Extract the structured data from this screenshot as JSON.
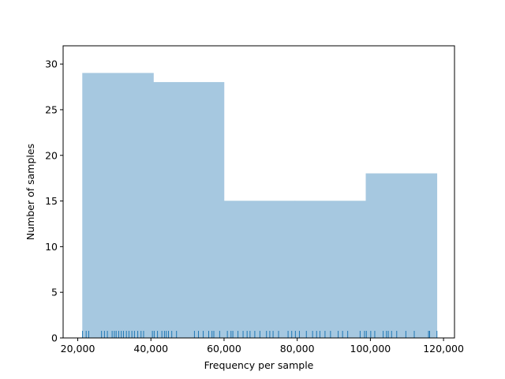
{
  "chart_data": {
    "type": "bar",
    "title": "",
    "xlabel": "Frequency per sample",
    "ylabel": "Number of samples",
    "xlim": [
      16000,
      123000
    ],
    "ylim": [
      0,
      32
    ],
    "xticks": [
      20000,
      40000,
      60000,
      80000,
      100000,
      120000
    ],
    "xtick_labels": [
      "20,000",
      "40,000",
      "60,000",
      "80,000",
      "100,000",
      "120,000"
    ],
    "yticks": [
      0,
      5,
      10,
      15,
      20,
      25,
      30
    ],
    "ytick_labels": [
      "0",
      "5",
      "10",
      "15",
      "20",
      "25",
      "30"
    ],
    "grid": false,
    "histogram_bins": [
      {
        "start": 21300,
        "end": 40700,
        "count": 29
      },
      {
        "start": 40700,
        "end": 60000,
        "count": 28
      },
      {
        "start": 60000,
        "end": 79400,
        "count": 15
      },
      {
        "start": 79400,
        "end": 98800,
        "count": 15
      },
      {
        "start": 98800,
        "end": 118200,
        "count": 18
      }
    ],
    "rug_values": [
      21300,
      22300,
      23000,
      26500,
      27300,
      28100,
      29400,
      30000,
      30500,
      31200,
      31900,
      32500,
      33300,
      34000,
      34800,
      35500,
      36400,
      37300,
      38000,
      40400,
      40900,
      41800,
      43000,
      43700,
      44200,
      44800,
      45700,
      47000,
      51900,
      53000,
      54300,
      55800,
      56700,
      57200,
      58800,
      60900,
      61900,
      62400,
      63800,
      65200,
      66300,
      67100,
      68400,
      69800,
      71600,
      72500,
      73400,
      74900,
      77500,
      78500,
      79500,
      80600,
      82500,
      84200,
      85300,
      86200,
      87600,
      89100,
      91200,
      92400,
      93800,
      97200,
      98400,
      98900,
      100100,
      101200,
      103500,
      104400,
      104900,
      105800,
      107200,
      109700,
      112000,
      115900,
      116200,
      118200
    ],
    "colors": {
      "bar": "#a6c8e0",
      "rug": "#1f77b4",
      "axes": "#000000"
    }
  }
}
